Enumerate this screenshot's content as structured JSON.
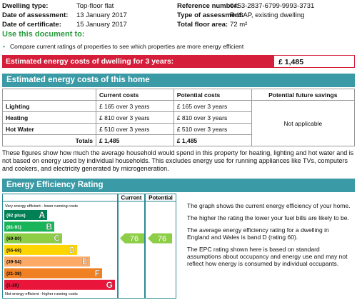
{
  "header": {
    "fields": [
      {
        "label": "Dwelling type:",
        "value": "Top-floor flat"
      },
      {
        "label": "Reference number:",
        "value": "0453-2837-6799-9993-3731"
      },
      {
        "label": "Date of assessment:",
        "value": "13  January  2017"
      },
      {
        "label": "Type of assessment:",
        "value": "RdSAP, existing dwelling"
      },
      {
        "label": "Date of certificate:",
        "value": "15  January  2017"
      },
      {
        "label": "Total floor area:",
        "value": "72 m²"
      }
    ]
  },
  "use_heading": "Use this document to:",
  "bullets": [
    "Compare current ratings of properties to see which properties are more energy efficient"
  ],
  "summary": {
    "label": "Estimated energy costs of dwelling for 3 years:",
    "value": "£ 1,485"
  },
  "costs": {
    "title": "Estimated energy costs of this home",
    "columns": [
      "Current costs",
      "Potential costs",
      "Potential future savings"
    ],
    "rows": [
      {
        "label": "Lighting",
        "current": "£ 165 over 3 years",
        "potential": "£ 165 over 3 years"
      },
      {
        "label": "Heating",
        "current": "£ 810 over 3 years",
        "potential": "£ 810 over 3 years"
      },
      {
        "label": "Hot Water",
        "current": "£ 510 over 3 years",
        "potential": "£ 510 over 3 years"
      }
    ],
    "totals": {
      "label": "Totals",
      "current": "£ 1,485",
      "potential": "£ 1,485"
    },
    "savings": "Not applicable",
    "note": "These figures show how much the average household would spend in this property for heating, lighting and hot water and is not based on energy used by individual households. This excludes energy use for running appliances like TVs, computers and cookers, and electricity generated by microgeneration."
  },
  "rating": {
    "title": "Energy Efficiency Rating",
    "columns": [
      "Current",
      "Potential"
    ],
    "top_note": "Very energy efficient - lower running costs",
    "bottom_note": "Not energy efficient - higher running costs",
    "bands": [
      {
        "range": "(92 plus)",
        "letter": "A"
      },
      {
        "range": "(81-91)",
        "letter": "B"
      },
      {
        "range": "(69-80)",
        "letter": "C"
      },
      {
        "range": "(55-68)",
        "letter": "D"
      },
      {
        "range": "(39-54)",
        "letter": "E"
      },
      {
        "range": "(21-38)",
        "letter": "F"
      },
      {
        "range": "(1-20)",
        "letter": "G"
      }
    ],
    "current": "76",
    "potential": "76",
    "paragraphs": [
      "The graph shows the current energy efficiency of your home.",
      "The higher the rating the lower your fuel bills are likely to be.",
      "The average energy efficiency rating for a dwelling in England and Wales is band D (rating 60).",
      "The EPC rating shown here is based on standard assumptions about occupancy and energy use and may not reflect how energy is consumed by individual occupants."
    ]
  }
}
